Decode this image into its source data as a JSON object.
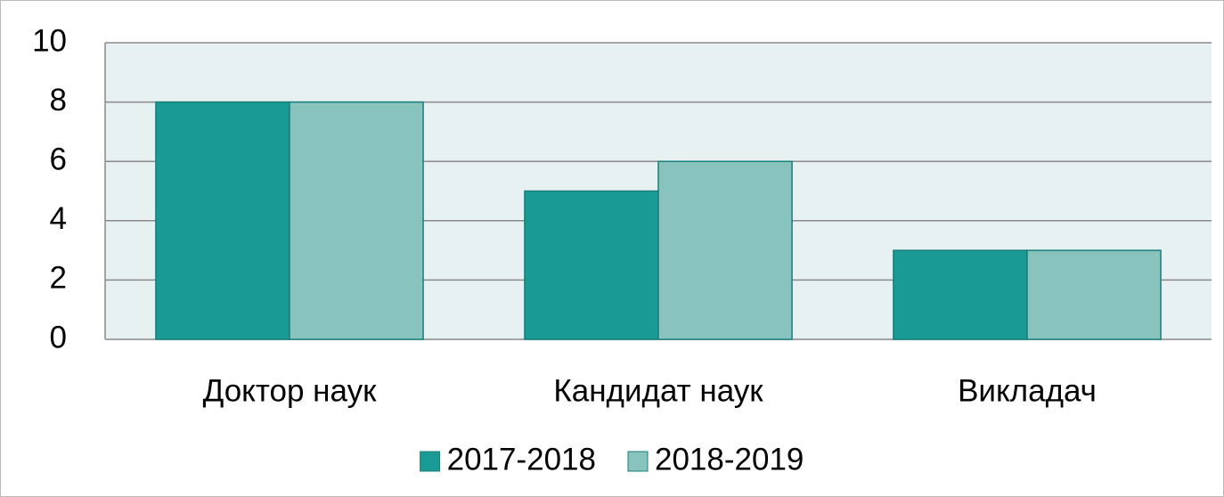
{
  "chart_data": {
    "type": "bar",
    "categories": [
      "Доктор наук",
      "Кандидат наук",
      "Викладач"
    ],
    "series": [
      {
        "name": "2017-2018",
        "color": "#1a9a94",
        "values": [
          8,
          5,
          3
        ]
      },
      {
        "name": "2018-2019",
        "color": "#88c4bd",
        "values": [
          8,
          6,
          3
        ]
      }
    ],
    "ylim": [
      0,
      10
    ],
    "yticks": [
      0,
      2,
      4,
      6,
      8,
      10
    ],
    "grid": true,
    "legend": "bottom"
  }
}
